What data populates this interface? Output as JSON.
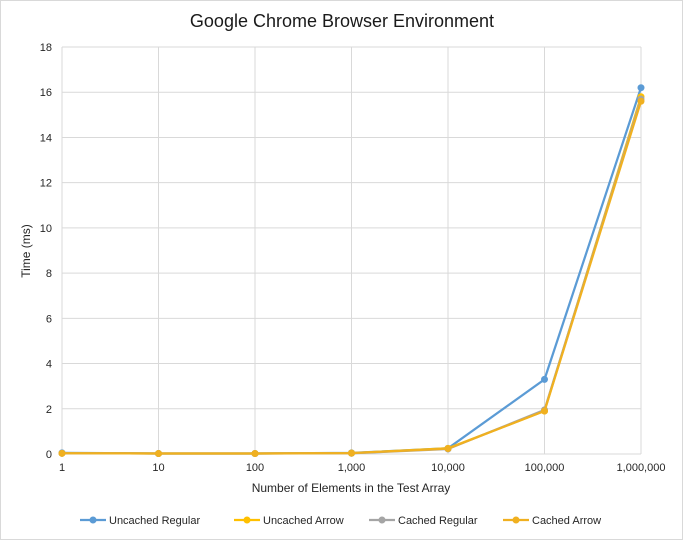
{
  "chart_data": {
    "type": "line",
    "title": "Google Chrome Browser Environment",
    "xlabel": "Number of Elements in the Test Array",
    "ylabel": "Time (ms)",
    "categories": [
      "1",
      "10",
      "100",
      "1,000",
      "10,000",
      "100,000",
      "1,000,000"
    ],
    "ylim": [
      0,
      18
    ],
    "yticks": [
      0,
      2,
      4,
      6,
      8,
      10,
      12,
      14,
      16,
      18
    ],
    "grid": true,
    "legend_position": "bottom",
    "series": [
      {
        "name": "Uncached Regular",
        "color": "#5b9bd5",
        "values": [
          0.05,
          0.02,
          0.02,
          0.05,
          0.25,
          3.3,
          16.2
        ]
      },
      {
        "name": "Uncached Arrow",
        "color": "#ffc000",
        "values": [
          0.03,
          0.02,
          0.02,
          0.04,
          0.25,
          1.9,
          15.8
        ]
      },
      {
        "name": "Cached Regular",
        "color": "#a5a5a5",
        "values": [
          0.03,
          0.02,
          0.02,
          0.03,
          0.22,
          1.95,
          15.7
        ]
      },
      {
        "name": "Cached Arrow",
        "color": "#f0b020",
        "values": [
          0.03,
          0.02,
          0.02,
          0.04,
          0.24,
          1.9,
          15.6
        ]
      }
    ]
  }
}
